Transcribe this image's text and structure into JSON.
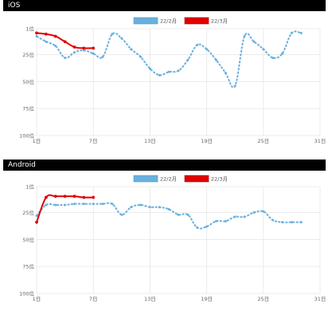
{
  "chart_data": [
    {
      "type": "line",
      "title": "iOS",
      "x_categories": [
        "1日",
        "7日",
        "13日",
        "19日",
        "25日",
        "31日"
      ],
      "y_ticks": [
        "1位",
        "25位",
        "50位",
        "75位",
        "100位"
      ],
      "ylim": [
        1,
        100
      ],
      "y_inverted": true,
      "xlim": [
        1,
        31
      ],
      "grid": true,
      "legend_position": "top-center",
      "series": [
        {
          "name": "22/2月",
          "color": "#6ab0de",
          "x": [
            1,
            2,
            3,
            4,
            5,
            6,
            7,
            8,
            9,
            10,
            11,
            12,
            13,
            14,
            15,
            16,
            17,
            18,
            19,
            20,
            21,
            22,
            23,
            24,
            25,
            26,
            27,
            28,
            29
          ],
          "values": [
            8,
            13,
            17,
            28,
            23,
            21,
            24,
            27,
            6,
            10,
            20,
            27,
            38,
            44,
            41,
            40,
            30,
            16,
            20,
            30,
            42,
            54,
            8,
            13,
            20,
            28,
            24,
            5,
            5
          ]
        },
        {
          "name": "22/3月",
          "color": "#e00000",
          "x": [
            1,
            2,
            3,
            4,
            5,
            6,
            7
          ],
          "values": [
            5,
            6,
            8,
            13,
            18,
            19,
            19
          ]
        }
      ]
    },
    {
      "type": "line",
      "title": "Android",
      "x_categories": [
        "1日",
        "7日",
        "13日",
        "19日",
        "25日",
        "31日"
      ],
      "y_ticks": [
        "1位",
        "25位",
        "50位",
        "75位",
        "100位"
      ],
      "ylim": [
        1,
        100
      ],
      "y_inverted": true,
      "xlim": [
        1,
        31
      ],
      "grid": true,
      "legend_position": "top-center",
      "series": [
        {
          "name": "22/2月",
          "color": "#6ab0de",
          "x": [
            1,
            2,
            3,
            4,
            5,
            6,
            7,
            8,
            9,
            10,
            11,
            12,
            13,
            14,
            15,
            16,
            17,
            18,
            19,
            20,
            21,
            22,
            23,
            24,
            25,
            26,
            27,
            28,
            29
          ],
          "values": [
            28,
            18,
            18,
            18,
            17,
            17,
            17,
            17,
            17,
            27,
            20,
            18,
            20,
            20,
            22,
            27,
            27,
            39,
            38,
            33,
            33,
            29,
            29,
            25,
            24,
            32,
            34,
            34,
            34
          ]
        },
        {
          "name": "22/3月",
          "color": "#e00000",
          "x": [
            1,
            2,
            3,
            4,
            5,
            6,
            7
          ],
          "values": [
            34,
            11,
            10,
            10,
            10,
            11,
            11
          ]
        }
      ]
    }
  ]
}
